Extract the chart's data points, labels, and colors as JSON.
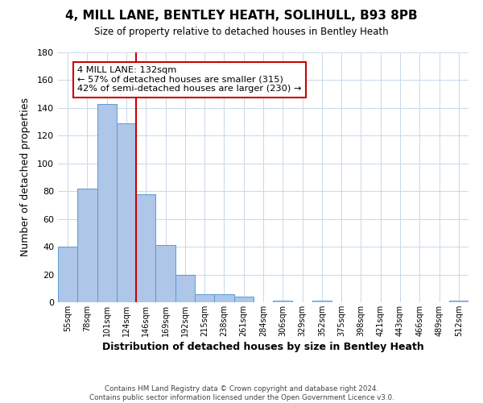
{
  "title": "4, MILL LANE, BENTLEY HEATH, SOLIHULL, B93 8PB",
  "subtitle": "Size of property relative to detached houses in Bentley Heath",
  "xlabel": "Distribution of detached houses by size in Bentley Heath",
  "ylabel": "Number of detached properties",
  "bin_labels": [
    "55sqm",
    "78sqm",
    "101sqm",
    "124sqm",
    "146sqm",
    "169sqm",
    "192sqm",
    "215sqm",
    "238sqm",
    "261sqm",
    "284sqm",
    "306sqm",
    "329sqm",
    "352sqm",
    "375sqm",
    "398sqm",
    "421sqm",
    "443sqm",
    "466sqm",
    "489sqm",
    "512sqm"
  ],
  "bar_values": [
    40,
    82,
    143,
    129,
    78,
    41,
    20,
    6,
    6,
    4,
    0,
    1,
    0,
    1,
    0,
    0,
    0,
    0,
    0,
    0,
    1
  ],
  "bar_color": "#aec6e8",
  "bar_edge_color": "#5b9bd5",
  "vline_color": "#cc0000",
  "annotation_text": "4 MILL LANE: 132sqm\n← 57% of detached houses are smaller (315)\n42% of semi-detached houses are larger (230) →",
  "annotation_box_color": "#ffffff",
  "annotation_border_color": "#cc0000",
  "ylim": [
    0,
    180
  ],
  "yticks": [
    0,
    20,
    40,
    60,
    80,
    100,
    120,
    140,
    160,
    180
  ],
  "footnote": "Contains HM Land Registry data © Crown copyright and database right 2024.\nContains public sector information licensed under the Open Government Licence v3.0.",
  "background_color": "#ffffff",
  "grid_color": "#c8d8e8"
}
